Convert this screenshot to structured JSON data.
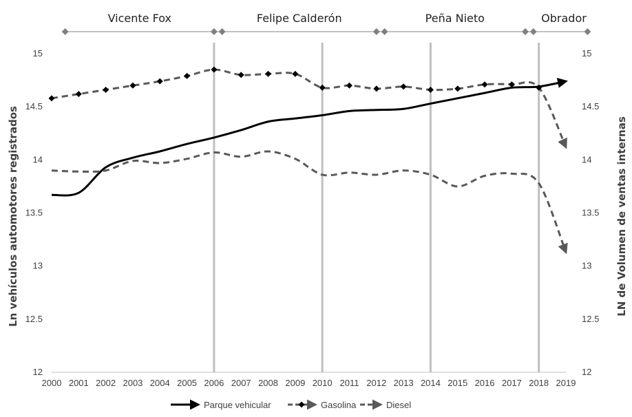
{
  "chart_data": {
    "type": "line",
    "x": [
      2000,
      2001,
      2002,
      2003,
      2004,
      2005,
      2006,
      2007,
      2008,
      2009,
      2010,
      2011,
      2012,
      2013,
      2014,
      2015,
      2016,
      2017,
      2018,
      2019
    ],
    "x_tick_labels": [
      "2000",
      "2001",
      "2002",
      "2003",
      "2004",
      "2005",
      "2006",
      "2007",
      "2008",
      "2009",
      "2010",
      "2011",
      "2012",
      "2013",
      "2014",
      "2015",
      "2016",
      "2017",
      "2018",
      "2019"
    ],
    "y_tick_labels_left": [
      "15",
      "14.5",
      "14",
      "13.5",
      "13",
      "12.5",
      "12"
    ],
    "y_tick_labels_right": [
      "15",
      "14.5",
      "14",
      "13.5",
      "13",
      "12.5",
      "12"
    ],
    "ylim": [
      12,
      15
    ],
    "ylabel_left": "Ln  vehículos automotores registrados",
    "ylabel_right": "LN de Volumen de ventas internas",
    "series": [
      {
        "name": "Parque vehicular",
        "axis": "left",
        "style": "solid",
        "color": "#000000",
        "values": [
          13.67,
          13.69,
          13.93,
          14.02,
          14.08,
          14.15,
          14.21,
          14.28,
          14.36,
          14.39,
          14.42,
          14.46,
          14.47,
          14.48,
          14.53,
          14.58,
          14.63,
          14.68,
          14.69,
          14.74
        ]
      },
      {
        "name": "Gasolina",
        "axis": "right",
        "style": "dashed-diamond",
        "color": "#595959",
        "values": [
          14.58,
          14.62,
          14.66,
          14.7,
          14.74,
          14.79,
          14.85,
          14.8,
          14.81,
          14.81,
          14.68,
          14.7,
          14.67,
          14.69,
          14.66,
          14.67,
          14.71,
          14.71,
          14.68,
          14.12
        ]
      },
      {
        "name": "Diesel",
        "axis": "right",
        "style": "dashed",
        "color": "#595959",
        "values": [
          13.9,
          13.89,
          13.9,
          13.99,
          13.97,
          14.01,
          14.07,
          14.03,
          14.08,
          14.01,
          13.86,
          13.88,
          13.86,
          13.9,
          13.86,
          13.75,
          13.85,
          13.87,
          13.78,
          13.13
        ]
      }
    ],
    "periods": [
      {
        "label": "Vicente Fox",
        "start": 2000.5,
        "end": 2006.0
      },
      {
        "label": "Felipe Calderón",
        "start": 2006.3,
        "end": 2012.0
      },
      {
        "label": "Peña Nieto",
        "start": 2012.3,
        "end": 2017.5
      },
      {
        "label": "Obrador",
        "start": 2017.8,
        "end": 2019.8
      }
    ],
    "vertical_markers": [
      2006,
      2010,
      2014,
      2018
    ],
    "legend_position": "bottom",
    "grid": false
  },
  "colors": {
    "parque": "#000000",
    "gasolina": "#595959",
    "diesel": "#595959",
    "period_marker": "#808080",
    "vertical_marker": "#bfbfbf"
  }
}
